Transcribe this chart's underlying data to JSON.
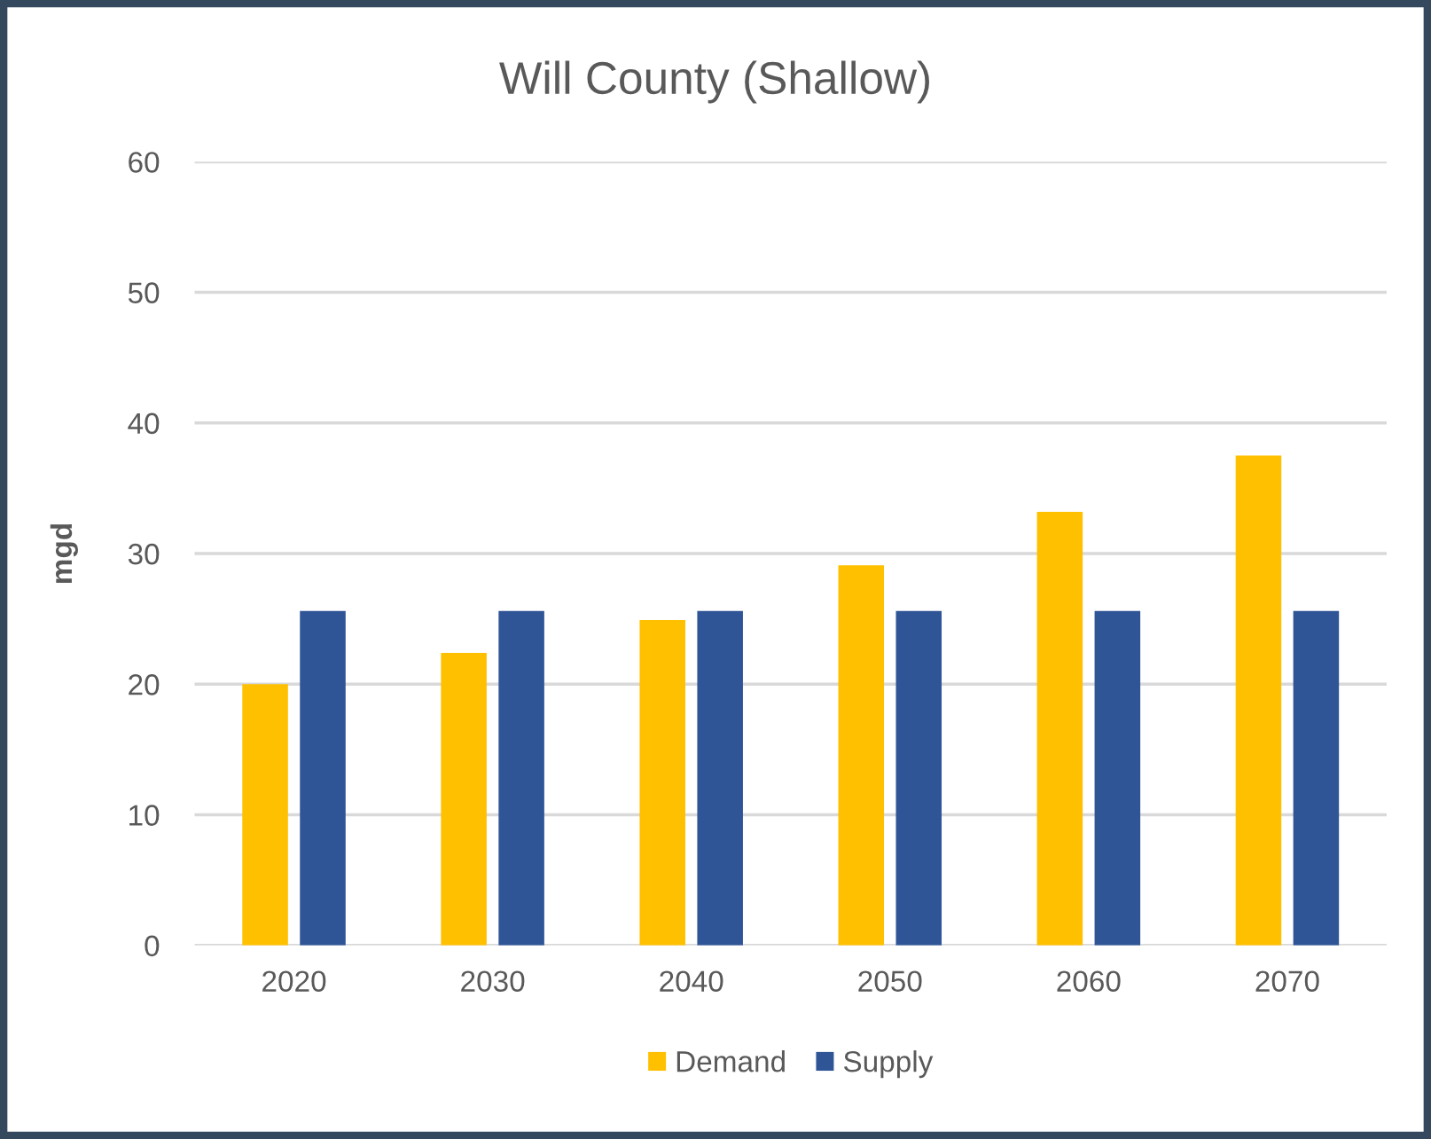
{
  "chart_data": {
    "type": "bar",
    "title": "Will County (Shallow)",
    "ylabel": "mgd",
    "categories": [
      "2020",
      "2030",
      "2040",
      "2050",
      "2060",
      "2070"
    ],
    "series": [
      {
        "name": "Demand",
        "color": "#ffc000",
        "values": [
          20.0,
          22.4,
          24.9,
          29.1,
          33.2,
          37.5
        ]
      },
      {
        "name": "Supply",
        "color": "#2f5597",
        "values": [
          25.6,
          25.6,
          25.6,
          25.6,
          25.6,
          25.6
        ]
      }
    ],
    "ylim": [
      0,
      60
    ],
    "yticks": [
      0,
      10,
      20,
      30,
      40,
      50,
      60
    ],
    "grid": "y",
    "legend": "bottom"
  }
}
